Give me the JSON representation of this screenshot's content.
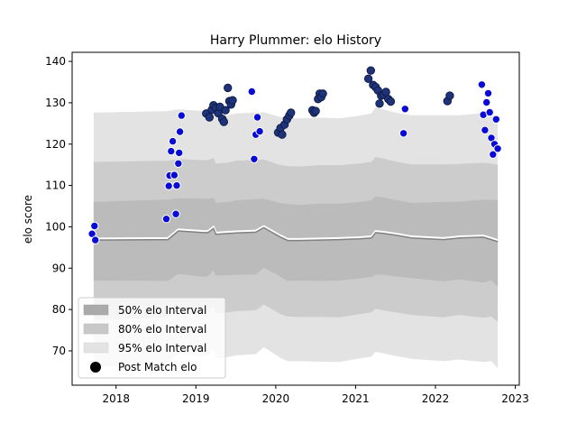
{
  "chart_data": {
    "type": "scatter",
    "title": "Harry Plummer: elo History",
    "xlabel": "",
    "ylabel": "elo score",
    "xlim": [
      2017.45,
      2023.05
    ],
    "ylim": [
      61.7,
      142.2
    ],
    "xticks": [
      2018,
      2019,
      2020,
      2021,
      2022,
      2023
    ],
    "yticks": [
      70,
      80,
      90,
      100,
      110,
      120,
      130,
      140
    ],
    "legend_position": "lower-left",
    "legend": [
      {
        "label": "50% elo Interval",
        "color": "#aaaaaa"
      },
      {
        "label": "80% elo Interval",
        "color": "#c8c8c8"
      },
      {
        "label": "95% elo Interval",
        "color": "#e3e3e3"
      },
      {
        "label": "Post Match elo",
        "color": "#000000"
      }
    ],
    "colors": {
      "band_95": "#e3e3e3",
      "band_80": "#cccccc",
      "band_50": "#bbbbbb",
      "median_line": "#808080",
      "median_glow": "#ffffff",
      "point_fill": "#0a0ad6",
      "point_fill_alt": "#1f3478",
      "point_edge_light": "#ffffff",
      "point_edge_dark": "#0d1b4a"
    },
    "bands": {
      "x": [
        2017.72,
        2018.65,
        2018.78,
        2019.1,
        2019.15,
        2019.22,
        2019.25,
        2019.4,
        2019.5,
        2019.75,
        2019.85,
        2020.05,
        2020.15,
        2020.3,
        2020.55,
        2020.8,
        2021.05,
        2021.2,
        2021.25,
        2021.35,
        2021.5,
        2021.7,
        2022.1,
        2022.3,
        2022.6,
        2022.7,
        2022.78
      ],
      "median": [
        96.8,
        96.9,
        99.0,
        98.6,
        98.6,
        99.6,
        98.2,
        98.4,
        98.5,
        98.7,
        99.8,
        97.6,
        96.7,
        96.7,
        96.8,
        96.9,
        97.1,
        97.3,
        98.6,
        98.4,
        98.0,
        97.3,
        96.9,
        97.3,
        97.5,
        96.9,
        96.4
      ],
      "p50_upper": [
        106.0,
        106.6,
        106.9,
        106.8,
        106.8,
        107.0,
        105.8,
        106.0,
        106.4,
        106.7,
        106.8,
        105.8,
        105.5,
        105.3,
        105.6,
        105.6,
        106.0,
        106.4,
        107.4,
        107.1,
        106.5,
        105.8,
        106.0,
        106.1,
        106.6,
        106.5,
        106.5
      ],
      "p50_lower": [
        87.0,
        86.9,
        88.6,
        87.9,
        88.0,
        89.5,
        88.2,
        88.3,
        88.4,
        88.5,
        90.1,
        88.0,
        86.9,
        87.0,
        86.9,
        87.0,
        87.5,
        87.9,
        88.5,
        88.4,
        88.0,
        87.6,
        86.8,
        87.3,
        86.5,
        87.0,
        85.5
      ],
      "p80_upper": [
        115.7,
        116.0,
        116.4,
        116.1,
        116.2,
        116.6,
        115.3,
        115.5,
        116.0,
        116.2,
        116.3,
        115.0,
        114.7,
        114.6,
        114.9,
        114.9,
        115.3,
        115.7,
        116.9,
        116.5,
        115.8,
        115.1,
        115.1,
        115.2,
        115.5,
        115.3,
        115.0
      ],
      "p80_lower": [
        77.5,
        78.1,
        79.9,
        79.4,
        79.6,
        80.8,
        79.0,
        79.3,
        79.6,
        79.8,
        81.2,
        79.0,
        78.3,
        78.2,
        78.2,
        78.1,
        78.9,
        79.3,
        80.2,
        79.8,
        79.3,
        78.7,
        78.1,
        78.7,
        78.0,
        78.3,
        77.0
      ],
      "p95_upper": [
        127.6,
        128.0,
        128.4,
        128.0,
        128.0,
        128.3,
        126.7,
        126.9,
        127.4,
        127.6,
        127.7,
        126.6,
        126.3,
        126.2,
        126.4,
        126.2,
        126.9,
        127.4,
        128.9,
        128.4,
        127.6,
        127.0,
        127.0,
        127.0,
        127.5,
        127.1,
        126.8
      ],
      "p95_lower": [
        66.0,
        67.1,
        69.4,
        68.5,
        68.8,
        70.5,
        68.2,
        68.5,
        68.9,
        69.2,
        70.9,
        68.4,
        67.5,
        67.5,
        67.4,
        67.3,
        68.2,
        68.6,
        69.8,
        69.4,
        68.8,
        68.1,
        67.5,
        67.9,
        67.3,
        67.5,
        65.8
      ]
    },
    "points_light": [
      {
        "x": 2017.7,
        "y": 98.3
      },
      {
        "x": 2017.73,
        "y": 100.2
      },
      {
        "x": 2017.74,
        "y": 96.8
      },
      {
        "x": 2018.63,
        "y": 101.9
      },
      {
        "x": 2018.66,
        "y": 109.9
      },
      {
        "x": 2018.67,
        "y": 112.4
      },
      {
        "x": 2018.69,
        "y": 118.3
      },
      {
        "x": 2018.71,
        "y": 120.7
      },
      {
        "x": 2018.73,
        "y": 112.5
      },
      {
        "x": 2018.75,
        "y": 103.1
      },
      {
        "x": 2018.76,
        "y": 110.0
      },
      {
        "x": 2018.78,
        "y": 115.3
      },
      {
        "x": 2018.79,
        "y": 117.9
      },
      {
        "x": 2018.8,
        "y": 123.0
      },
      {
        "x": 2018.82,
        "y": 126.9
      },
      {
        "x": 2019.7,
        "y": 132.7
      },
      {
        "x": 2019.73,
        "y": 116.4
      },
      {
        "x": 2019.75,
        "y": 122.3
      },
      {
        "x": 2019.77,
        "y": 126.5
      },
      {
        "x": 2019.8,
        "y": 123.1
      },
      {
        "x": 2021.62,
        "y": 128.5
      },
      {
        "x": 2021.6,
        "y": 122.6
      },
      {
        "x": 2022.58,
        "y": 134.4
      },
      {
        "x": 2022.6,
        "y": 127.1
      },
      {
        "x": 2022.62,
        "y": 123.4
      },
      {
        "x": 2022.64,
        "y": 130.1
      },
      {
        "x": 2022.66,
        "y": 132.3
      },
      {
        "x": 2022.68,
        "y": 127.7
      },
      {
        "x": 2022.7,
        "y": 121.5
      },
      {
        "x": 2022.72,
        "y": 117.5
      },
      {
        "x": 2022.74,
        "y": 120.0
      },
      {
        "x": 2022.76,
        "y": 126.0
      },
      {
        "x": 2022.78,
        "y": 118.9
      }
    ],
    "points_dark": [
      {
        "x": 2019.13,
        "y": 127.4
      },
      {
        "x": 2019.17,
        "y": 126.5
      },
      {
        "x": 2019.2,
        "y": 128.3
      },
      {
        "x": 2019.22,
        "y": 129.4
      },
      {
        "x": 2019.25,
        "y": 128.8
      },
      {
        "x": 2019.28,
        "y": 127.5
      },
      {
        "x": 2019.3,
        "y": 129.0
      },
      {
        "x": 2019.33,
        "y": 126.1
      },
      {
        "x": 2019.35,
        "y": 125.4
      },
      {
        "x": 2019.37,
        "y": 128.2
      },
      {
        "x": 2019.4,
        "y": 133.6
      },
      {
        "x": 2019.42,
        "y": 130.4
      },
      {
        "x": 2019.44,
        "y": 129.6
      },
      {
        "x": 2019.46,
        "y": 130.6
      },
      {
        "x": 2020.03,
        "y": 122.8
      },
      {
        "x": 2020.06,
        "y": 123.9
      },
      {
        "x": 2020.08,
        "y": 122.3
      },
      {
        "x": 2020.11,
        "y": 124.7
      },
      {
        "x": 2020.14,
        "y": 126.0
      },
      {
        "x": 2020.17,
        "y": 126.9
      },
      {
        "x": 2020.19,
        "y": 127.6
      },
      {
        "x": 2020.46,
        "y": 128.2
      },
      {
        "x": 2020.48,
        "y": 127.6
      },
      {
        "x": 2020.5,
        "y": 128.0
      },
      {
        "x": 2020.53,
        "y": 130.9
      },
      {
        "x": 2020.55,
        "y": 132.2
      },
      {
        "x": 2020.57,
        "y": 131.4
      },
      {
        "x": 2020.59,
        "y": 132.2
      },
      {
        "x": 2021.16,
        "y": 135.8
      },
      {
        "x": 2021.19,
        "y": 137.8
      },
      {
        "x": 2021.22,
        "y": 134.3
      },
      {
        "x": 2021.25,
        "y": 133.8
      },
      {
        "x": 2021.28,
        "y": 133.0
      },
      {
        "x": 2021.3,
        "y": 129.8
      },
      {
        "x": 2021.32,
        "y": 131.7
      },
      {
        "x": 2021.35,
        "y": 131.9
      },
      {
        "x": 2021.38,
        "y": 132.6
      },
      {
        "x": 2021.41,
        "y": 130.9
      },
      {
        "x": 2021.44,
        "y": 130.3
      },
      {
        "x": 2022.15,
        "y": 130.4
      },
      {
        "x": 2022.18,
        "y": 131.7
      }
    ]
  }
}
